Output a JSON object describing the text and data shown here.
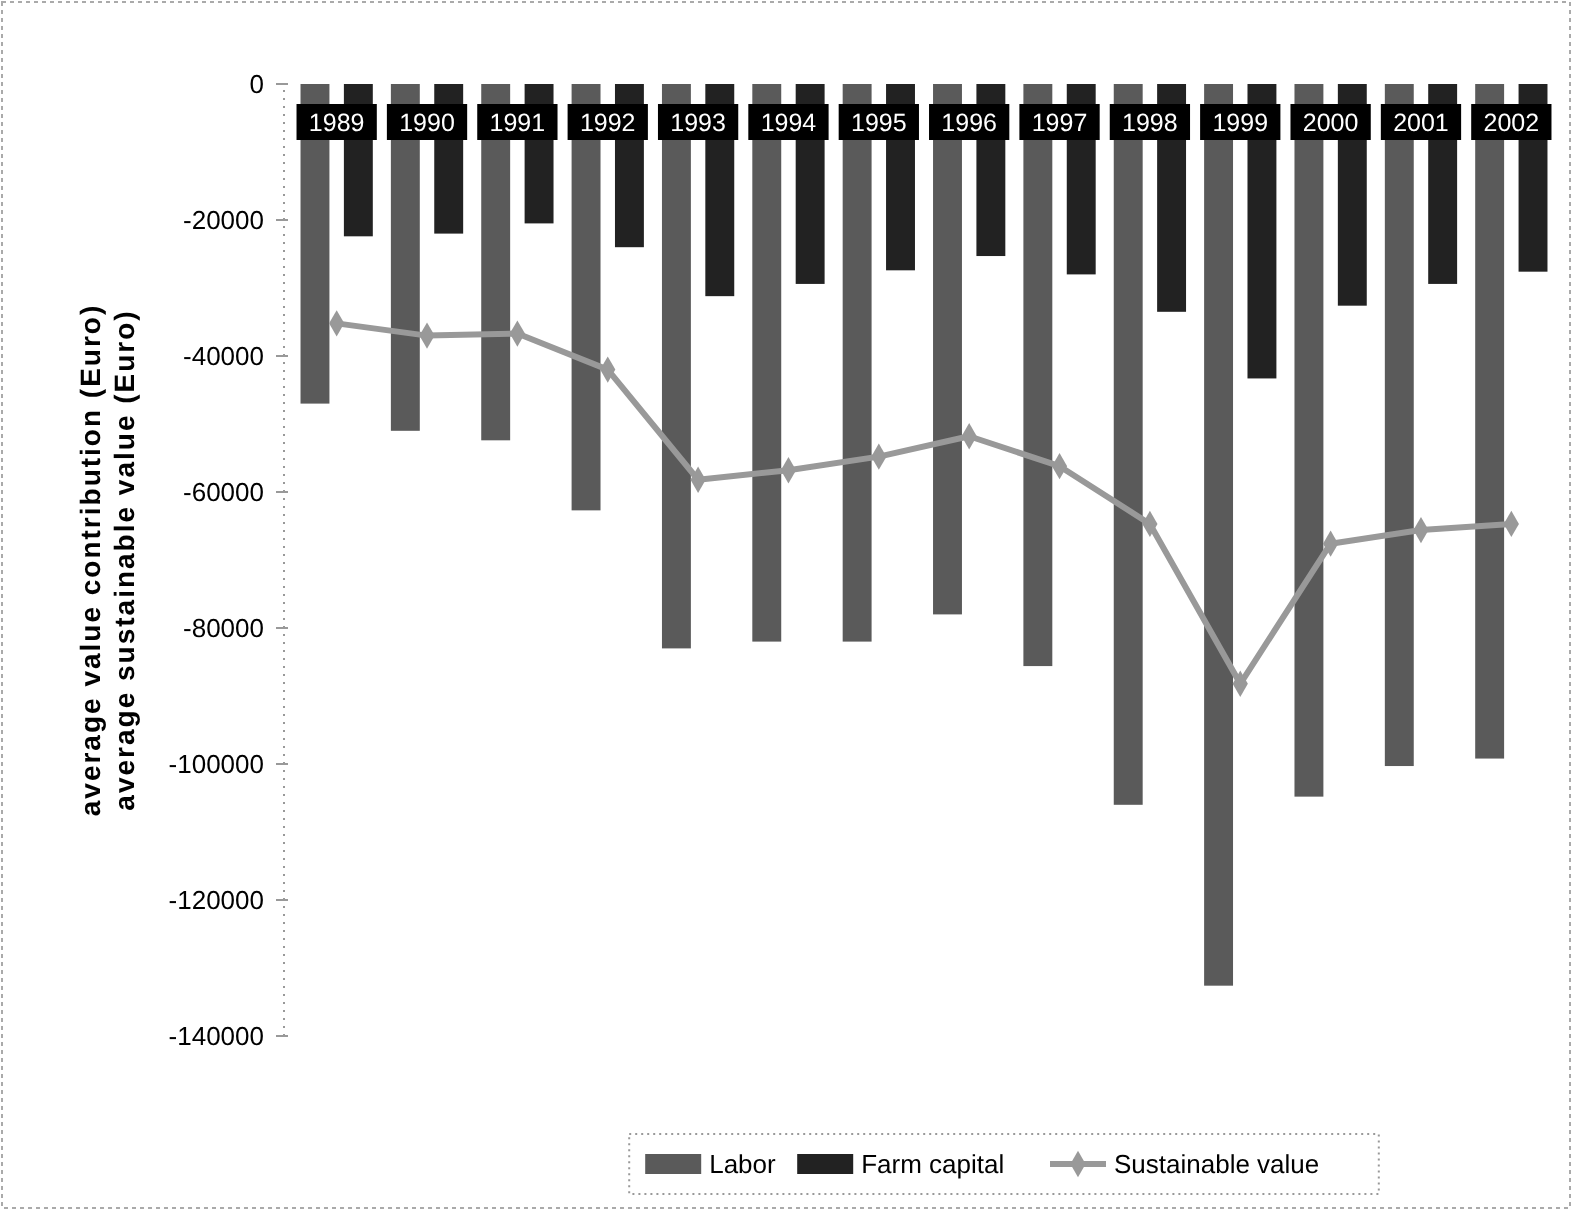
{
  "chart_data": {
    "type": "bar",
    "ylabel": "average value contribution (Euro)\naverage sustainable value (Euro)",
    "categories": [
      "1989",
      "1990",
      "1991",
      "1992",
      "1993",
      "1994",
      "1995",
      "1996",
      "1997",
      "1998",
      "1999",
      "2000",
      "2001",
      "2002"
    ],
    "series": [
      {
        "name": "Labor",
        "color": "#5a5a5a",
        "values": [
          -47000,
          -51000,
          -52400,
          -62700,
          -83000,
          -82000,
          -82000,
          -78000,
          -85600,
          -106000,
          -132600,
          -104800,
          -100300,
          -99200
        ]
      },
      {
        "name": "Farm capital",
        "color": "#222222",
        "values": [
          -22400,
          -22000,
          -20500,
          -24000,
          -31200,
          -29400,
          -27400,
          -25300,
          -28000,
          -33500,
          -43300,
          -32600,
          -29400,
          -27600
        ]
      },
      {
        "name": "Sustainable value",
        "type": "line",
        "color": "#999999",
        "values": [
          -35200,
          -37000,
          -36700,
          -42000,
          -58200,
          -56800,
          -54800,
          -51800,
          -56200,
          -64700,
          -88200,
          -67600,
          -65600,
          -64700
        ]
      }
    ],
    "ylim": [
      -140000,
      0
    ],
    "yticks": [
      0,
      -20000,
      -40000,
      -60000,
      -80000,
      -100000,
      -120000,
      -140000
    ],
    "legend": "bottom",
    "marker": "diamond",
    "line_style": "solid"
  }
}
